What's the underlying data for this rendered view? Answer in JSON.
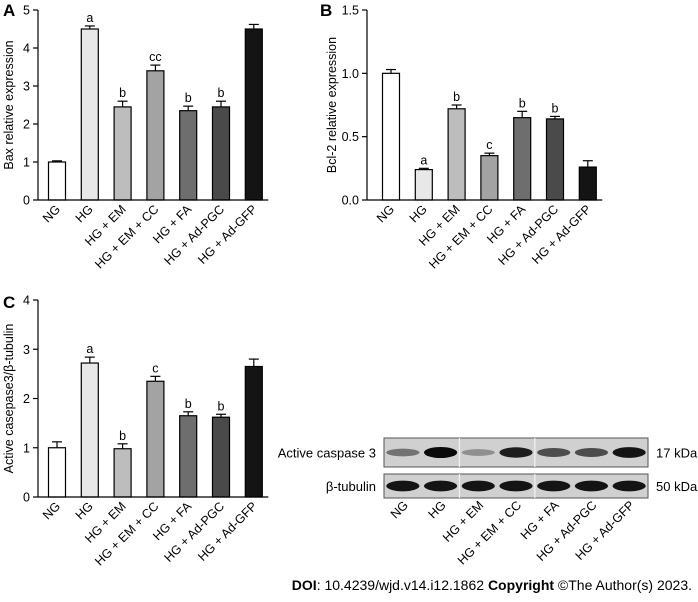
{
  "chart_data": [
    {
      "panel_label": "A",
      "type": "bar",
      "ylabel": "Bax relative expression",
      "xlabel": "",
      "ylim": [
        0,
        5
      ],
      "yticks": [
        "0",
        "1",
        "2",
        "3",
        "4",
        "5"
      ],
      "categories": [
        "NG",
        "HG",
        "HG + EM",
        "HG + EM + CC",
        "HG + FA",
        "HG + Ad-PGC",
        "HG + Ad-GFP"
      ],
      "values": [
        1.0,
        4.5,
        2.45,
        3.4,
        2.35,
        2.45,
        4.5
      ],
      "errors": [
        0.03,
        0.08,
        0.15,
        0.15,
        0.12,
        0.15,
        0.12
      ],
      "annotations": [
        "",
        "a",
        "b",
        "cc",
        "b",
        "b",
        ""
      ],
      "bar_colors": [
        "#ffffff",
        "#e8e8e8",
        "#bdbdbd",
        "#a3a3a3",
        "#6e6e6e",
        "#4a4a4a",
        "#141414"
      ]
    },
    {
      "panel_label": "B",
      "type": "bar",
      "ylabel": "Bcl-2 relative expression",
      "xlabel": "",
      "ylim": [
        0,
        1.5
      ],
      "yticks": [
        "0.0",
        "0.5",
        "1.0",
        "1.5"
      ],
      "categories": [
        "NG",
        "HG",
        "HG + EM",
        "HG + EM + CC",
        "HG + FA",
        "HG + Ad-PGC",
        "HG + Ad-GFP"
      ],
      "values": [
        1.0,
        0.24,
        0.72,
        0.35,
        0.65,
        0.64,
        0.26
      ],
      "errors": [
        0.03,
        0.01,
        0.03,
        0.02,
        0.05,
        0.02,
        0.05
      ],
      "annotations": [
        "",
        "a",
        "b",
        "c",
        "b",
        "b",
        ""
      ],
      "bar_colors": [
        "#ffffff",
        "#e8e8e8",
        "#bdbdbd",
        "#a3a3a3",
        "#6e6e6e",
        "#4a4a4a",
        "#141414"
      ]
    },
    {
      "panel_label": "C",
      "type": "bar",
      "ylabel": "Active casepase3/β-tubulin",
      "xlabel": "",
      "ylim": [
        0,
        4
      ],
      "yticks": [
        "0",
        "1",
        "2",
        "3",
        "4"
      ],
      "categories": [
        "NG",
        "HG",
        "HG + EM",
        "HG + EM + CC",
        "HG + FA",
        "HG + Ad-PGC",
        "HG + Ad-GFP"
      ],
      "values": [
        1.0,
        2.72,
        0.98,
        2.35,
        1.65,
        1.62,
        2.65
      ],
      "errors": [
        0.12,
        0.12,
        0.1,
        0.1,
        0.08,
        0.06,
        0.15
      ],
      "annotations": [
        "",
        "a",
        "b",
        "c",
        "b",
        "b",
        ""
      ],
      "bar_colors": [
        "#ffffff",
        "#e8e8e8",
        "#bdbdbd",
        "#a3a3a3",
        "#6e6e6e",
        "#4a4a4a",
        "#141414"
      ]
    }
  ],
  "western_blot": {
    "rows": [
      {
        "label": "Active caspase 3",
        "size": "17 kDa",
        "intensities": [
          0.45,
          1.0,
          0.3,
          0.9,
          0.65,
          0.65,
          0.95
        ]
      },
      {
        "label": "β-tubulin",
        "size": "50 kDa",
        "intensities": [
          0.95,
          0.95,
          0.95,
          0.95,
          0.95,
          0.95,
          0.95
        ]
      }
    ],
    "lanes": [
      "NG",
      "HG",
      "HG + EM",
      "HG + EM + CC",
      "HG + FA",
      "HG + Ad-PGC",
      "HG + Ad-GFP"
    ]
  },
  "footer": {
    "doi_label": "DOI",
    "doi_text": ": 10.4239/wjd.v14.i12.1862 ",
    "copyright_label": "Copyright",
    "copyright_text": " ©The Author(s) 2023."
  }
}
